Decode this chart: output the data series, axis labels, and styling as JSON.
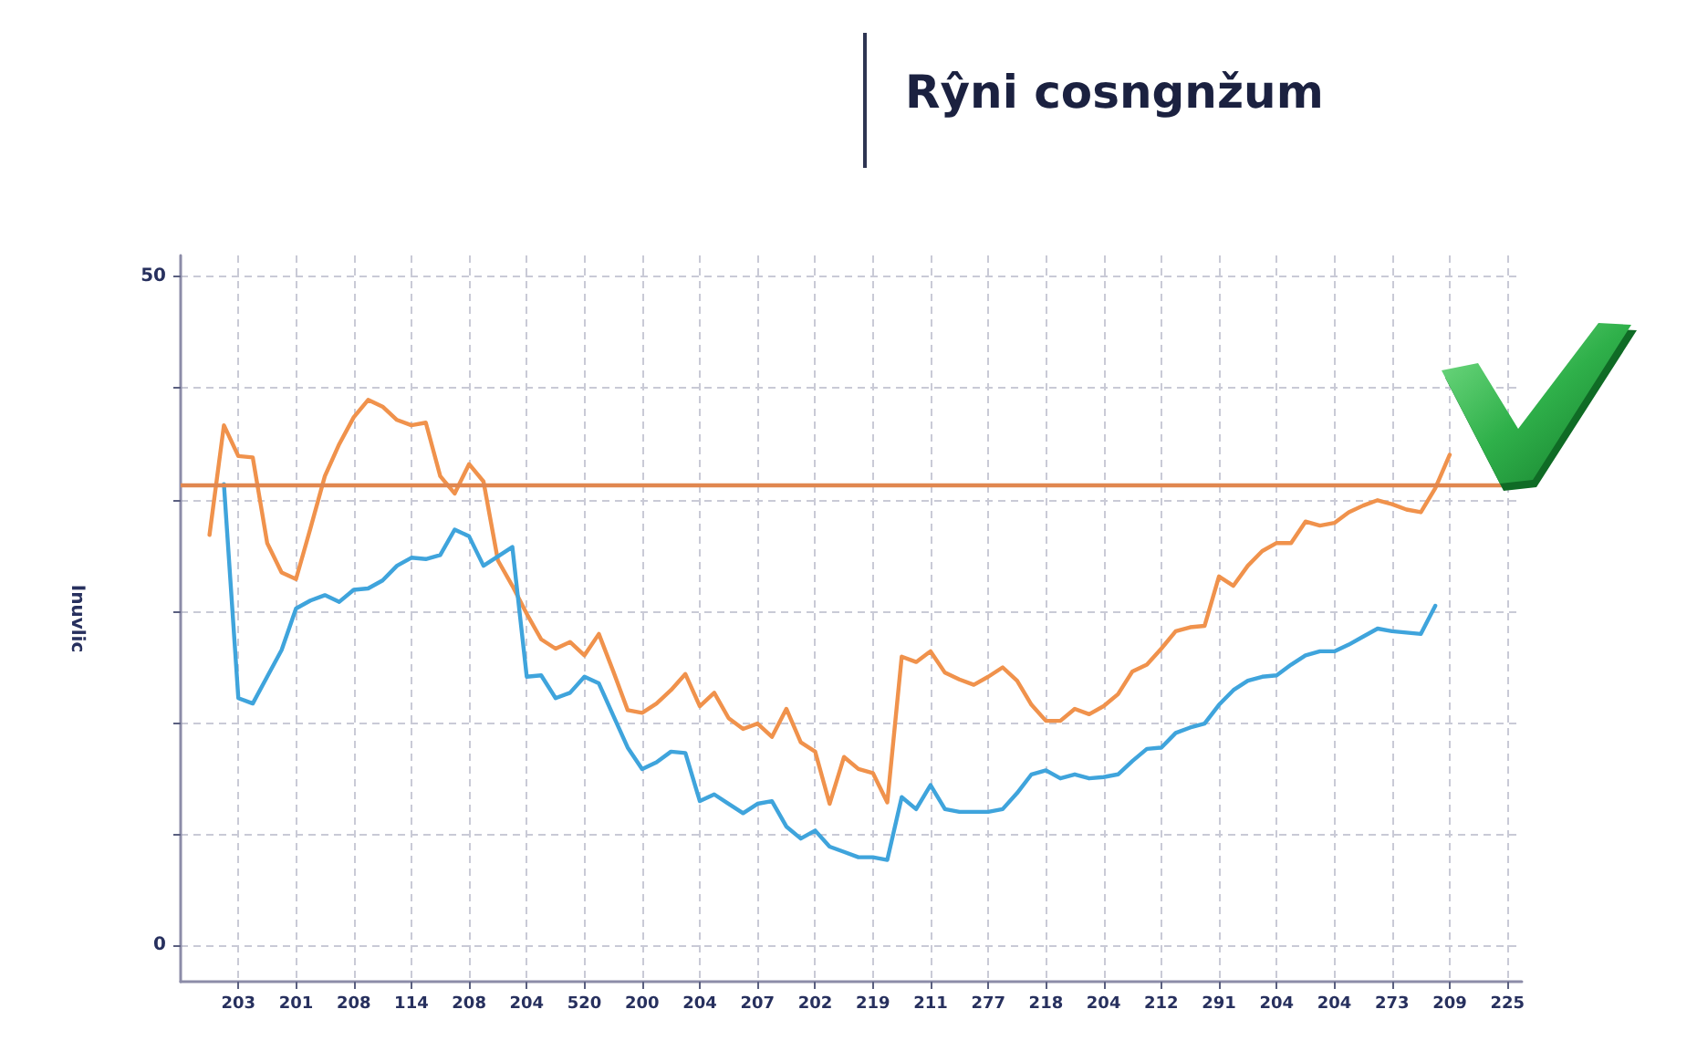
{
  "chart_data": {
    "type": "line",
    "title": "Rŷni cosngnžum",
    "ylabel": "Inuvlic",
    "categories": [
      null,
      null,
      null,
      null,
      "203",
      null,
      null,
      null,
      "201",
      null,
      null,
      null,
      "208",
      null,
      null,
      null,
      "114",
      null,
      null,
      null,
      "208",
      null,
      null,
      null,
      "204",
      null,
      null,
      null,
      "520",
      null,
      null,
      null,
      "200",
      null,
      null,
      null,
      "204",
      null,
      null,
      null,
      "207",
      null,
      null,
      null,
      "202",
      null,
      null,
      null,
      "219",
      null,
      null,
      null,
      "211",
      null,
      null,
      null,
      "277",
      null,
      null,
      null,
      "218",
      null,
      null,
      null,
      "204",
      null,
      null,
      null,
      "212",
      null,
      null,
      null,
      "291",
      null,
      null,
      null,
      "204",
      null,
      null,
      null,
      "204",
      null,
      null,
      null,
      "273",
      null,
      null,
      null,
      "209",
      null,
      null,
      null,
      "225",
      null
    ],
    "ylim": [
      -2.7,
      51.6
    ],
    "yticks": [
      0,
      {
        "value": 8.3,
        "label": null
      },
      {
        "value": 16.7,
        "label": null
      },
      {
        "value": 25,
        "label": null
      },
      {
        "value": 33.3,
        "label": null
      },
      {
        "value": 41.7,
        "label": null
      },
      50
    ],
    "grid": true,
    "ref_lines": [
      {
        "axis": "y",
        "value": 34.5,
        "color": "#e0874f"
      }
    ],
    "series": [
      {
        "color": "#f0924c",
        "values": [
          null,
          null,
          30.7,
          38.9,
          36.6,
          36.5,
          30.1,
          27.9,
          27.4,
          31.2,
          35.1,
          37.5,
          39.5,
          40.8,
          40.3,
          39.3,
          38.9,
          39.1,
          35.1,
          33.8,
          36.0,
          34.7,
          28.8,
          26.9,
          24.8,
          22.9,
          22.2,
          22.7,
          21.7,
          23.3,
          20.5,
          17.6,
          17.4,
          18.1,
          19.1,
          20.3,
          17.9,
          18.9,
          17.0,
          16.2,
          16.6,
          15.6,
          17.7,
          15.2,
          14.5,
          10.6,
          14.1,
          13.2,
          12.9,
          10.7,
          21.6,
          21.2,
          22.0,
          20.4,
          19.9,
          19.5,
          20.1,
          20.8,
          19.8,
          18.0,
          16.8,
          16.8,
          17.7,
          17.3,
          17.9,
          18.8,
          20.5,
          21.0,
          22.2,
          23.5,
          23.8,
          23.9,
          27.6,
          26.9,
          28.4,
          29.5,
          30.1,
          30.1,
          31.7,
          31.4,
          31.6,
          32.4,
          32.9,
          33.3,
          33.0,
          32.6,
          32.4,
          34.2,
          36.7,
          null,
          null,
          null,
          null,
          null
        ]
      },
      {
        "color": "#3fa4dc",
        "values": [
          null,
          null,
          null,
          34.5,
          18.5,
          18.1,
          20.1,
          22.1,
          25.2,
          25.8,
          26.2,
          25.7,
          26.6,
          26.7,
          27.3,
          28.4,
          29.0,
          28.9,
          29.2,
          31.1,
          30.6,
          28.4,
          29.1,
          29.8,
          20.1,
          20.2,
          18.5,
          18.9,
          20.1,
          19.6,
          17.2,
          14.8,
          13.2,
          13.7,
          14.5,
          14.4,
          10.8,
          11.3,
          10.6,
          9.9,
          10.6,
          10.8,
          8.9,
          8.0,
          8.6,
          7.4,
          7.0,
          6.6,
          6.6,
          6.4,
          11.1,
          10.2,
          12.0,
          10.2,
          10.0,
          10.0,
          10.0,
          10.2,
          11.4,
          12.8,
          13.1,
          12.5,
          12.8,
          12.5,
          12.6,
          12.8,
          13.8,
          14.7,
          14.8,
          15.9,
          16.3,
          16.6,
          18.0,
          19.1,
          19.8,
          20.1,
          20.2,
          21.0,
          21.7,
          22.0,
          22.0,
          22.5,
          23.1,
          23.7,
          23.5,
          23.4,
          23.3,
          25.4,
          null,
          null,
          null,
          null,
          null,
          null
        ]
      }
    ]
  }
}
